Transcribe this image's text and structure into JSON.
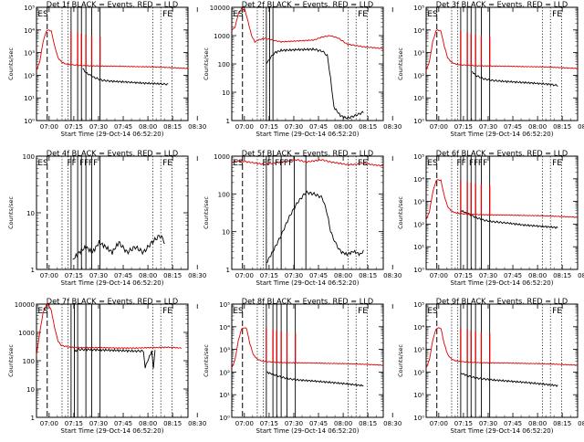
{
  "figure": {
    "type": "line",
    "xlabel": "Start Time (29-Oct-14 06:52:20)",
    "ylabel": "Counts/sec",
    "x_ticks": [
      "07:00",
      "07:15",
      "07:30",
      "07:45",
      "08:00",
      "08:15",
      "08:30"
    ],
    "colors": {
      "events": "#000000",
      "lld": "#dd0000"
    }
  },
  "chart_data": [
    {
      "type": "line",
      "title": "Det 1f BLACK = Events, RED = LLD",
      "xlabel": "Start Time (29-Oct-14 06:52:20)",
      "ylabel": "Counts/sec",
      "log_y": true,
      "ylim": [
        1,
        100000
      ],
      "y_ticks": [
        "10⁰",
        "10¹",
        "10²",
        "10³",
        "10⁴",
        "10⁵"
      ],
      "flags": [
        "ES",
        "FE"
      ],
      "markers": {
        "dashed": [
          6.5
        ],
        "dotted": [
          15.5,
          19.2,
          70.6,
          75.5,
          82.3
        ],
        "solid": [
          21,
          25,
          27.3,
          30,
          33.5,
          38.6
        ]
      },
      "spikes": [
        21,
        25,
        27.3,
        30,
        33.5,
        38.6
      ],
      "series": [
        {
          "name": "BLACK = Events",
          "x": [
            28,
            30,
            35,
            40,
            45,
            55,
            65,
            75,
            80
          ],
          "y": [
            200,
            130,
            80,
            60,
            55,
            50,
            45,
            42,
            40
          ]
        },
        {
          "name": "RED = LLD",
          "x": [
            0,
            2,
            4,
            6,
            7,
            9,
            11,
            13,
            15,
            17,
            19,
            21,
            24,
            27,
            32,
            40,
            50,
            60,
            70,
            80,
            92
          ],
          "y": [
            160,
            400,
            3000,
            9000,
            10000,
            9000,
            2000,
            600,
            400,
            330,
            300,
            290,
            280,
            270,
            260,
            255,
            250,
            240,
            235,
            220,
            200
          ]
        }
      ]
    },
    {
      "type": "line",
      "title": "Det 2f BLACK = Events, RED = LLD",
      "xlabel": "Start Time (29-Oct-14 06:52:20)",
      "ylabel": "Counts/sec",
      "log_y": true,
      "ylim": [
        1,
        10000
      ],
      "y_ticks": [
        "1",
        "10",
        "100",
        "1000",
        "10000"
      ],
      "flags": [
        "ES",
        "FE"
      ],
      "markers": {
        "dashed": [
          6.5
        ],
        "dotted": [
          15.5,
          19.2,
          70.6,
          75.5,
          82.3
        ],
        "solid": [
          21,
          23,
          25
        ]
      },
      "spikes": [],
      "series": [
        {
          "name": "BLACK = Events",
          "x": [
            21,
            23,
            26,
            30,
            40,
            50,
            55,
            58,
            60,
            62,
            66,
            70,
            75,
            80
          ],
          "y": [
            100,
            150,
            250,
            300,
            320,
            330,
            280,
            200,
            30,
            3,
            1.5,
            1.2,
            1.5,
            2
          ]
        },
        {
          "name": "RED = LLD",
          "x": [
            0,
            2,
            4,
            6,
            8,
            10,
            12,
            14,
            16,
            20,
            25,
            30,
            40,
            50,
            55,
            60,
            65,
            70,
            75,
            80,
            85,
            92
          ],
          "y": [
            1500,
            2000,
            6000,
            9000,
            8000,
            3000,
            1000,
            600,
            700,
            800,
            700,
            600,
            650,
            700,
            900,
            1000,
            800,
            500,
            450,
            400,
            380,
            350
          ]
        }
      ]
    },
    {
      "type": "line",
      "title": "Det 3f BLACK = Events, RED = LLD",
      "xlabel": "Start Time (29-Oct-14 06:52:20)",
      "ylabel": "Counts/sec",
      "log_y": true,
      "ylim": [
        1,
        100000
      ],
      "y_ticks": [
        "10⁰",
        "10¹",
        "10²",
        "10³",
        "10⁴",
        "10⁵"
      ],
      "flags": [
        "ES",
        "FE"
      ],
      "markers": {
        "dashed": [
          6.5
        ],
        "dotted": [
          15.5,
          19.2,
          70.6,
          75.5,
          82.3
        ],
        "solid": [
          21,
          25,
          27.3,
          30,
          33.5,
          38.6
        ]
      },
      "spikes": [
        21,
        25,
        27.3,
        30,
        33.5,
        38.6
      ],
      "series": [
        {
          "name": "BLACK = Events",
          "x": [
            28,
            30,
            35,
            40,
            45,
            55,
            65,
            75,
            80
          ],
          "y": [
            150,
            100,
            70,
            60,
            55,
            50,
            45,
            40,
            35
          ]
        },
        {
          "name": "RED = LLD",
          "x": [
            0,
            2,
            4,
            6,
            7,
            9,
            11,
            13,
            15,
            17,
            19,
            21,
            24,
            27,
            32,
            40,
            50,
            60,
            70,
            80,
            92
          ],
          "y": [
            160,
            400,
            3000,
            9000,
            10000,
            9000,
            2000,
            600,
            400,
            330,
            300,
            290,
            280,
            270,
            260,
            255,
            250,
            240,
            235,
            220,
            200
          ]
        }
      ]
    },
    {
      "type": "line",
      "title": "Det 4f BLACK = Events, RED = LLD",
      "xlabel": "Start Time (29-Oct-14 06:52:20)",
      "ylabel": "Counts/sec",
      "log_y": true,
      "ylim": [
        1,
        100
      ],
      "y_ticks": [
        "1",
        "10",
        "100"
      ],
      "flags": [
        "ES",
        "FF",
        "FF",
        "FF",
        "FE"
      ],
      "markers": {
        "dashed": [
          6.5
        ],
        "dotted": [
          15.5,
          19.2,
          70.6,
          75.5,
          82.3
        ],
        "solid": [
          21,
          25,
          27.3,
          30,
          33.5,
          38.6
        ]
      },
      "spikes": [],
      "series": [
        {
          "name": "BLACK = Events",
          "x": [
            22,
            26,
            30,
            34,
            38,
            42,
            46,
            50,
            55,
            60,
            65,
            70,
            75,
            78
          ],
          "y": [
            1.5,
            2,
            2.5,
            2,
            3,
            2.5,
            2,
            3,
            2,
            2.5,
            2,
            3,
            4,
            3
          ]
        }
      ]
    },
    {
      "type": "line",
      "title": "Det 5f BLACK = Events, RED = LLD",
      "xlabel": "Start Time (29-Oct-14 06:52:20)",
      "ylabel": "Counts/sec",
      "log_y": true,
      "ylim": [
        1,
        1000
      ],
      "y_ticks": [
        "1",
        "10",
        "100",
        "1000"
      ],
      "flags": [
        "ES",
        "FF",
        "FF",
        "FF",
        "FE"
      ],
      "markers": {
        "dashed": [
          6.5
        ],
        "dotted": [
          15.5,
          19.2,
          70.6,
          75.5,
          82.3
        ],
        "solid": [
          21,
          25,
          30,
          38,
          45
        ]
      },
      "spikes": [],
      "series": [
        {
          "name": "BLACK = Events",
          "x": [
            21,
            25,
            30,
            35,
            40,
            45,
            50,
            55,
            58,
            60,
            63,
            66,
            70,
            74,
            78,
            80
          ],
          "y": [
            1.5,
            3,
            8,
            25,
            60,
            110,
            100,
            80,
            30,
            10,
            5,
            3,
            2.5,
            3,
            2.5,
            3
          ]
        },
        {
          "name": "RED = LLD",
          "x": [
            0,
            5,
            10,
            15,
            20,
            25,
            30,
            35,
            40,
            45,
            50,
            55,
            60,
            65,
            70,
            75,
            80,
            85,
            92
          ],
          "y": [
            700,
            750,
            700,
            650,
            600,
            650,
            700,
            750,
            800,
            700,
            750,
            800,
            700,
            650,
            600,
            600,
            650,
            600,
            550
          ]
        }
      ]
    },
    {
      "type": "line",
      "title": "Det 6f BLACK = Events, RED = LLD",
      "xlabel": "Start Time (29-Oct-14 06:52:20)",
      "ylabel": "Counts/sec",
      "log_y": true,
      "ylim": [
        1,
        100000
      ],
      "y_ticks": [
        "10⁰",
        "10¹",
        "10²",
        "10³",
        "10⁴",
        "10⁵"
      ],
      "flags": [
        "ES",
        "FF",
        "FF",
        "FF",
        "FE"
      ],
      "markers": {
        "dashed": [
          6.5
        ],
        "dotted": [
          15.5,
          19.2,
          70.6,
          75.5,
          82.3
        ],
        "solid": [
          21,
          25,
          27.3,
          30,
          33.5,
          38.6
        ]
      },
      "spikes": [
        21,
        25,
        27.3,
        30,
        33.5,
        38.6
      ],
      "series": [
        {
          "name": "BLACK = Events",
          "x": [
            21,
            25,
            30,
            35,
            40,
            45,
            50,
            60,
            70,
            80
          ],
          "y": [
            400,
            300,
            200,
            150,
            130,
            120,
            110,
            90,
            80,
            70
          ]
        },
        {
          "name": "RED = LLD",
          "x": [
            0,
            2,
            4,
            6,
            7,
            9,
            11,
            13,
            15,
            17,
            19,
            21,
            24,
            27,
            32,
            40,
            50,
            60,
            70,
            80,
            92
          ],
          "y": [
            150,
            350,
            2500,
            8000,
            9000,
            8500,
            1800,
            600,
            400,
            330,
            300,
            290,
            280,
            270,
            260,
            255,
            250,
            240,
            235,
            220,
            200
          ]
        }
      ]
    },
    {
      "type": "line",
      "title": "Det 7f BLACK = Events, RED = LLD",
      "xlabel": "Start Time (29-Oct-14 06:52:20)",
      "ylabel": "Counts/sec",
      "log_y": true,
      "ylim": [
        1,
        10000
      ],
      "y_ticks": [
        "1",
        "10",
        "100",
        "1000",
        "10000"
      ],
      "flags": [
        "ES",
        "FE"
      ],
      "markers": {
        "dashed": [
          6.5
        ],
        "dotted": [
          15.5,
          19.2,
          70.6,
          75.5,
          82.3
        ],
        "solid": [
          21,
          23,
          25,
          30,
          33.5,
          38.6
        ]
      },
      "spikes": [],
      "series": [
        {
          "name": "BLACK = Events",
          "x": [
            23,
            25,
            30,
            40,
            50,
            60,
            65,
            66,
            70,
            71,
            72
          ],
          "y": [
            200,
            250,
            250,
            240,
            230,
            220,
            220,
            60,
            220,
            50,
            220
          ]
        },
        {
          "name": "RED = LLD",
          "x": [
            0,
            2,
            4,
            6,
            7,
            9,
            11,
            13,
            15,
            20,
            30,
            40,
            50,
            60,
            70,
            80,
            88
          ],
          "y": [
            150,
            1000,
            5000,
            9000,
            10000,
            6000,
            1500,
            500,
            350,
            300,
            290,
            290,
            280,
            280,
            290,
            300,
            280
          ]
        }
      ]
    },
    {
      "type": "line",
      "title": "Det 8f BLACK = Events, RED = LLD",
      "xlabel": "Start Time (29-Oct-14 06:52:20)",
      "ylabel": "Counts/sec",
      "log_y": true,
      "ylim": [
        1,
        100000
      ],
      "y_ticks": [
        "10⁰",
        "10¹",
        "10²",
        "10³",
        "10⁴",
        "10⁵"
      ],
      "flags": [
        "ES",
        "FE"
      ],
      "markers": {
        "dashed": [
          6.5
        ],
        "dotted": [
          15.5,
          19.2,
          70.6,
          75.5,
          82.3
        ],
        "solid": [
          21,
          25,
          27.3,
          30,
          33.5,
          38.6
        ]
      },
      "spikes": [
        21,
        25,
        27.3,
        30,
        33.5,
        38.6
      ],
      "series": [
        {
          "name": "BLACK = Events",
          "x": [
            21,
            25,
            30,
            35,
            40,
            50,
            60,
            70,
            80
          ],
          "y": [
            100,
            80,
            60,
            50,
            45,
            40,
            35,
            30,
            25
          ]
        },
        {
          "name": "RED = LLD",
          "x": [
            0,
            2,
            4,
            6,
            7,
            9,
            11,
            13,
            15,
            17,
            19,
            21,
            24,
            27,
            32,
            40,
            50,
            60,
            70,
            80,
            92
          ],
          "y": [
            150,
            350,
            2500,
            8000,
            9000,
            8500,
            1800,
            600,
            400,
            330,
            300,
            290,
            280,
            270,
            260,
            255,
            250,
            240,
            235,
            220,
            200
          ]
        }
      ]
    },
    {
      "type": "line",
      "title": "Det 9f BLACK = Events, RED = LLD",
      "xlabel": "Start Time (29-Oct-14 06:52:20)",
      "ylabel": "Counts/sec",
      "log_y": true,
      "ylim": [
        1,
        100000
      ],
      "y_ticks": [
        "10⁰",
        "10¹",
        "10²",
        "10³",
        "10⁴",
        "10⁵"
      ],
      "flags": [
        "ES",
        "FE"
      ],
      "markers": {
        "dashed": [
          6.5
        ],
        "dotted": [
          15.5,
          19.2,
          70.6,
          75.5,
          82.3
        ],
        "solid": [
          21,
          25,
          27.3,
          30,
          33.5,
          38.6
        ]
      },
      "spikes": [
        21,
        25,
        27.3,
        30,
        33.5,
        38.6
      ],
      "series": [
        {
          "name": "BLACK = Events",
          "x": [
            21,
            25,
            30,
            35,
            40,
            50,
            60,
            70,
            80
          ],
          "y": [
            90,
            70,
            55,
            50,
            45,
            40,
            35,
            30,
            25
          ]
        },
        {
          "name": "RED = LLD",
          "x": [
            0,
            2,
            4,
            6,
            7,
            9,
            11,
            13,
            15,
            17,
            19,
            21,
            24,
            27,
            32,
            40,
            50,
            60,
            70,
            80,
            92
          ],
          "y": [
            150,
            350,
            2500,
            8000,
            9000,
            8500,
            1800,
            600,
            400,
            330,
            300,
            290,
            280,
            270,
            260,
            255,
            250,
            240,
            235,
            220,
            200
          ]
        }
      ]
    }
  ]
}
